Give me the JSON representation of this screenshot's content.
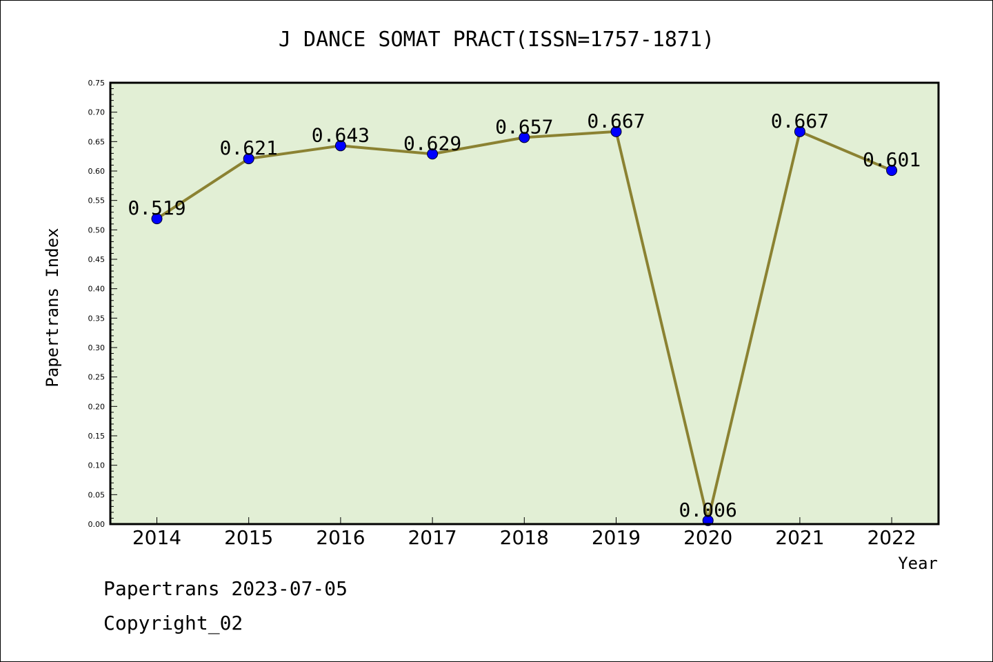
{
  "chart_data": {
    "type": "line",
    "title": "J DANCE SOMAT PRACT(ISSN=1757-1871)",
    "xlabel": "Year",
    "ylabel": "Papertrans Index",
    "categories": [
      "2014",
      "2015",
      "2016",
      "2017",
      "2018",
      "2019",
      "2020",
      "2021",
      "2022"
    ],
    "values": [
      0.519,
      0.621,
      0.643,
      0.629,
      0.657,
      0.667,
      0.006,
      0.667,
      0.601
    ],
    "value_labels": [
      "0.519",
      "0.621",
      "0.643",
      "0.629",
      "0.657",
      "0.667",
      "0.006",
      "0.667",
      "0.601"
    ],
    "ylim": [
      0,
      0.75
    ],
    "yticks": [
      "0.00",
      "0.05",
      "0.10",
      "0.15",
      "0.20",
      "0.25",
      "0.30",
      "0.35",
      "0.40",
      "0.45",
      "0.50",
      "0.55",
      "0.60",
      "0.65",
      "0.70",
      "0.75"
    ],
    "grid": false,
    "colors": {
      "plot_background": "#e2efd5",
      "line": "#8b8232",
      "marker": "#0000ff"
    }
  },
  "footer": {
    "line1": "Papertrans 2023-07-05",
    "line2": "Copyright_02"
  }
}
